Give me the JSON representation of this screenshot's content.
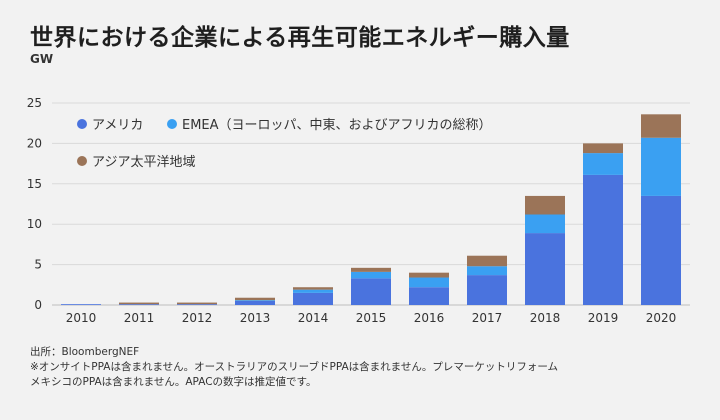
{
  "title": "世界における企業による再生可能エネルギー購入量",
  "unit_label": "GW",
  "colors": {
    "background": "#f2f2f2",
    "americas": "#4a73de",
    "emea": "#3aa0f2",
    "apac": "#9b7458",
    "grid": "#d9d9d9"
  },
  "chart_data": {
    "type": "bar",
    "stacked": true,
    "categories": [
      "2010",
      "2011",
      "2012",
      "2013",
      "2014",
      "2015",
      "2016",
      "2017",
      "2018",
      "2019",
      "2020"
    ],
    "series": [
      {
        "name": "アメリカ",
        "color": "#4a73de",
        "values": [
          0.1,
          0.1,
          0.1,
          0.5,
          1.5,
          3.3,
          2.2,
          3.7,
          8.9,
          16.1,
          13.5
        ]
      },
      {
        "name": "EMEA（ヨーロッパ、中東、およびアフリカの総称）",
        "color": "#3aa0f2",
        "values": [
          0.0,
          0.0,
          0.0,
          0.1,
          0.4,
          0.8,
          1.2,
          1.1,
          2.3,
          2.7,
          7.2
        ]
      },
      {
        "name": "アジア太平洋地域",
        "color": "#9b7458",
        "values": [
          0.0,
          0.2,
          0.2,
          0.3,
          0.3,
          0.5,
          0.6,
          1.3,
          2.3,
          1.2,
          2.9
        ]
      }
    ],
    "yticks": [
      0,
      5,
      10,
      15,
      20,
      25
    ],
    "ylim": [
      0,
      25
    ],
    "ylabel": "GW",
    "grid": true,
    "legend_position": "top-left"
  },
  "notes": [
    "出所：BloombergNEF",
    "※オンサイトPPAは含まれません。オーストラリアのスリーブドPPAは含まれません。プレマーケットリフォーム",
    "メキシコのPPAは含まれません。APACの数字は推定値です。"
  ]
}
